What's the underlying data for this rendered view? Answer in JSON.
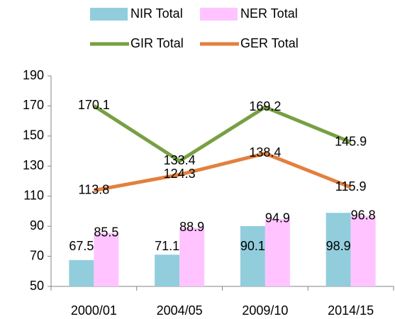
{
  "chart_data": {
    "type": "combo",
    "categories": [
      "2000/01",
      "2004/05",
      "2009/10",
      "2014/15"
    ],
    "series": [
      {
        "name": "NIR Total",
        "type": "bar",
        "color": "#92cddc",
        "values": [
          67.5,
          71.1,
          90.1,
          98.9
        ]
      },
      {
        "name": "NER Total",
        "type": "bar",
        "color": "#ffc4ff",
        "values": [
          85.5,
          88.9,
          94.9,
          96.8
        ]
      },
      {
        "name": "GIR Total",
        "type": "line",
        "color": "#77a043",
        "values": [
          170.1,
          133.4,
          169.2,
          145.9
        ]
      },
      {
        "name": "GER Total",
        "type": "line",
        "color": "#e3803e",
        "values": [
          113.8,
          124.3,
          138.4,
          115.9
        ]
      }
    ],
    "ylim": [
      50,
      190
    ],
    "yticks": [
      50,
      70,
      90,
      110,
      130,
      150,
      170,
      190
    ],
    "grid": false,
    "legend": "top"
  }
}
